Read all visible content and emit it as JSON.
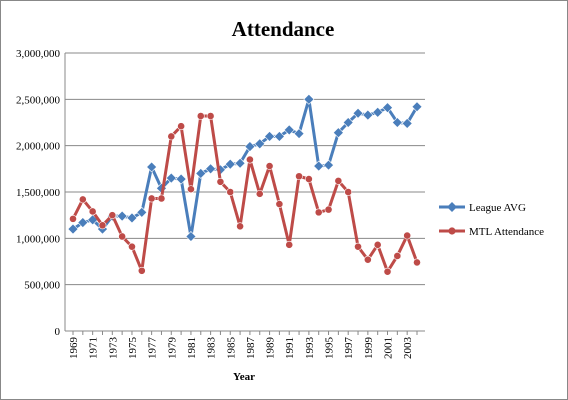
{
  "chart_data": {
    "type": "line",
    "title": "Attendance",
    "xlabel": "Year",
    "ylabel": "",
    "ylim": [
      0,
      3000000
    ],
    "y_ticks": [
      0,
      500000,
      1000000,
      1500000,
      2000000,
      2500000,
      3000000
    ],
    "y_tick_labels": [
      "0",
      "500,000",
      "1,000,000",
      "1,500,000",
      "2,000,000",
      "2,500,000",
      "3,000,000"
    ],
    "x": [
      1969,
      1970,
      1971,
      1972,
      1973,
      1974,
      1975,
      1976,
      1977,
      1978,
      1979,
      1980,
      1981,
      1982,
      1983,
      1984,
      1985,
      1986,
      1987,
      1988,
      1989,
      1990,
      1991,
      1992,
      1993,
      1994,
      1995,
      1996,
      1997,
      1998,
      1999,
      2000,
      2001,
      2002,
      2003,
      2004
    ],
    "x_tick_labels": [
      "1969",
      "1971",
      "1973",
      "1975",
      "1977",
      "1979",
      "1981",
      "1983",
      "1985",
      "1987",
      "1989",
      "1991",
      "1993",
      "1995",
      "1997",
      "1999",
      "2001",
      "2003"
    ],
    "grid": "horizontal",
    "legend_position": "right",
    "series": [
      {
        "name": "League AVG",
        "color": "#4a7ebb",
        "marker": "diamond",
        "values": [
          1100000,
          1170000,
          1200000,
          1100000,
          1240000,
          1240000,
          1220000,
          1280000,
          1770000,
          1540000,
          1650000,
          1640000,
          1020000,
          1700000,
          1750000,
          1740000,
          1800000,
          1810000,
          1990000,
          2020000,
          2100000,
          2100000,
          2170000,
          2130000,
          2500000,
          1780000,
          1790000,
          2140000,
          2250000,
          2350000,
          2330000,
          2360000,
          2410000,
          2250000,
          2240000,
          2420000
        ]
      },
      {
        "name": "MTL Attendance",
        "color": "#be4b48",
        "marker": "circle",
        "values": [
          1210000,
          1420000,
          1290000,
          1140000,
          1250000,
          1020000,
          910000,
          650000,
          1430000,
          1430000,
          2100000,
          2210000,
          1530000,
          2320000,
          2320000,
          1610000,
          1500000,
          1130000,
          1850000,
          1480000,
          1780000,
          1370000,
          930000,
          1670000,
          1640000,
          1280000,
          1310000,
          1620000,
          1500000,
          910000,
          770000,
          930000,
          640000,
          810000,
          1030000,
          740000
        ]
      }
    ]
  }
}
